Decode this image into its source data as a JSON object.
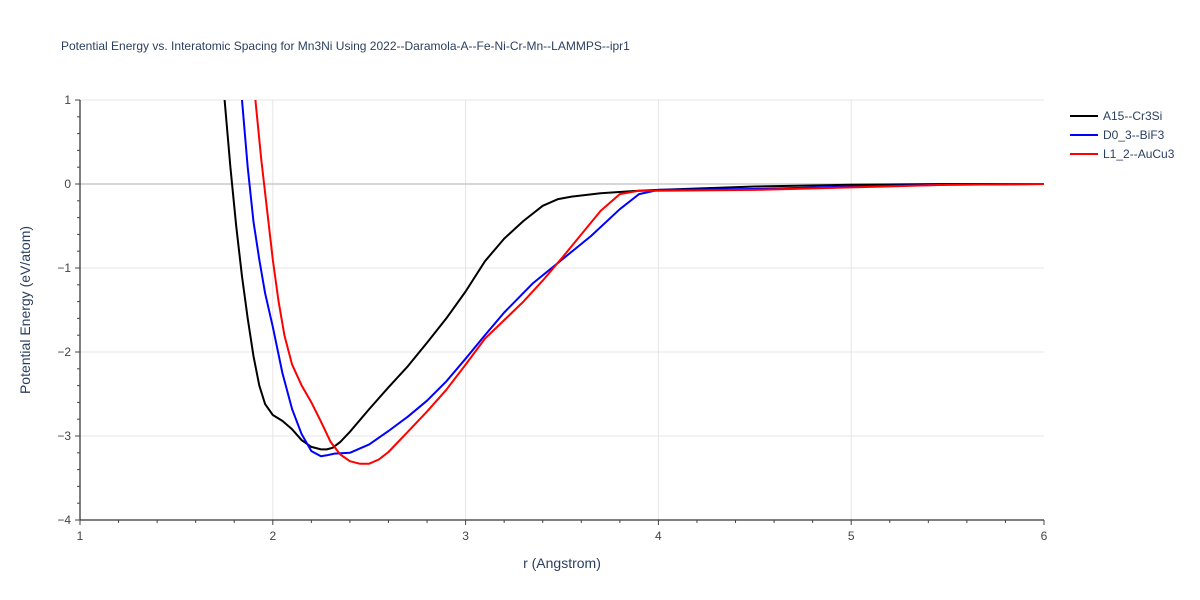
{
  "chart_data": {
    "type": "line",
    "title": "Potential Energy vs. Interatomic Spacing for Mn3Ni Using 2022--Daramola-A--Fe-Ni-Cr-Mn--LAMMPS--ipr1",
    "xlabel": "r (Angstrom)",
    "ylabel": "Potential Energy (eV/atom)",
    "xlim": [
      1,
      6
    ],
    "ylim": [
      -4,
      1
    ],
    "xticks": [
      "1",
      "2",
      "3",
      "4",
      "5",
      "6"
    ],
    "yticks": [
      "1",
      "0",
      "−1",
      "−2",
      "−3",
      "−4"
    ],
    "grid": true,
    "legend_position": "top-right",
    "series": [
      {
        "name": "A15--Cr3Si",
        "color": "#000000",
        "x": [
          1.75,
          1.78,
          1.81,
          1.84,
          1.87,
          1.9,
          1.93,
          1.96,
          2.0,
          2.05,
          2.1,
          2.15,
          2.2,
          2.25,
          2.28,
          2.31,
          2.35,
          2.4,
          2.5,
          2.6,
          2.7,
          2.8,
          2.9,
          3.0,
          3.1,
          3.2,
          3.3,
          3.4,
          3.48,
          3.55,
          3.7,
          3.9,
          4.0,
          4.5,
          5.0,
          5.5,
          6.0
        ],
        "y": [
          1.0,
          0.2,
          -0.5,
          -1.1,
          -1.6,
          -2.05,
          -2.4,
          -2.62,
          -2.75,
          -2.82,
          -2.92,
          -3.05,
          -3.13,
          -3.16,
          -3.16,
          -3.14,
          -3.07,
          -2.95,
          -2.68,
          -2.42,
          -2.17,
          -1.89,
          -1.6,
          -1.28,
          -0.92,
          -0.65,
          -0.44,
          -0.26,
          -0.18,
          -0.15,
          -0.11,
          -0.08,
          -0.07,
          -0.03,
          -0.01,
          0.0,
          0.0
        ]
      },
      {
        "name": "D0_3--BiF3",
        "color": "#0000ff",
        "x": [
          1.84,
          1.87,
          1.9,
          1.93,
          1.96,
          2.0,
          2.05,
          2.1,
          2.15,
          2.2,
          2.25,
          2.28,
          2.32,
          2.4,
          2.5,
          2.6,
          2.7,
          2.8,
          2.9,
          3.0,
          3.1,
          3.2,
          3.35,
          3.5,
          3.65,
          3.8,
          3.9,
          4.0,
          4.5,
          5.0,
          5.5,
          6.0
        ],
        "y": [
          1.0,
          0.2,
          -0.45,
          -0.9,
          -1.3,
          -1.7,
          -2.25,
          -2.68,
          -2.98,
          -3.18,
          -3.24,
          -3.23,
          -3.21,
          -3.2,
          -3.1,
          -2.94,
          -2.77,
          -2.58,
          -2.35,
          -2.08,
          -1.8,
          -1.53,
          -1.18,
          -0.9,
          -0.62,
          -0.3,
          -0.12,
          -0.07,
          -0.06,
          -0.03,
          -0.01,
          0.0
        ]
      },
      {
        "name": "L1_2--AuCu3",
        "color": "#ff0000",
        "x": [
          1.91,
          1.94,
          1.97,
          2.0,
          2.03,
          2.06,
          2.1,
          2.15,
          2.2,
          2.25,
          2.3,
          2.35,
          2.4,
          2.45,
          2.5,
          2.55,
          2.6,
          2.7,
          2.8,
          2.9,
          3.0,
          3.1,
          3.2,
          3.3,
          3.4,
          3.5,
          3.6,
          3.7,
          3.8,
          3.9,
          4.0,
          4.5,
          5.0,
          5.5,
          6.0
        ],
        "y": [
          1.0,
          0.3,
          -0.3,
          -0.9,
          -1.4,
          -1.8,
          -2.15,
          -2.4,
          -2.6,
          -2.83,
          -3.07,
          -3.22,
          -3.3,
          -3.33,
          -3.33,
          -3.28,
          -3.19,
          -2.95,
          -2.71,
          -2.45,
          -2.15,
          -1.84,
          -1.62,
          -1.4,
          -1.15,
          -0.88,
          -0.6,
          -0.32,
          -0.12,
          -0.08,
          -0.08,
          -0.07,
          -0.04,
          -0.01,
          0.0
        ]
      }
    ]
  }
}
